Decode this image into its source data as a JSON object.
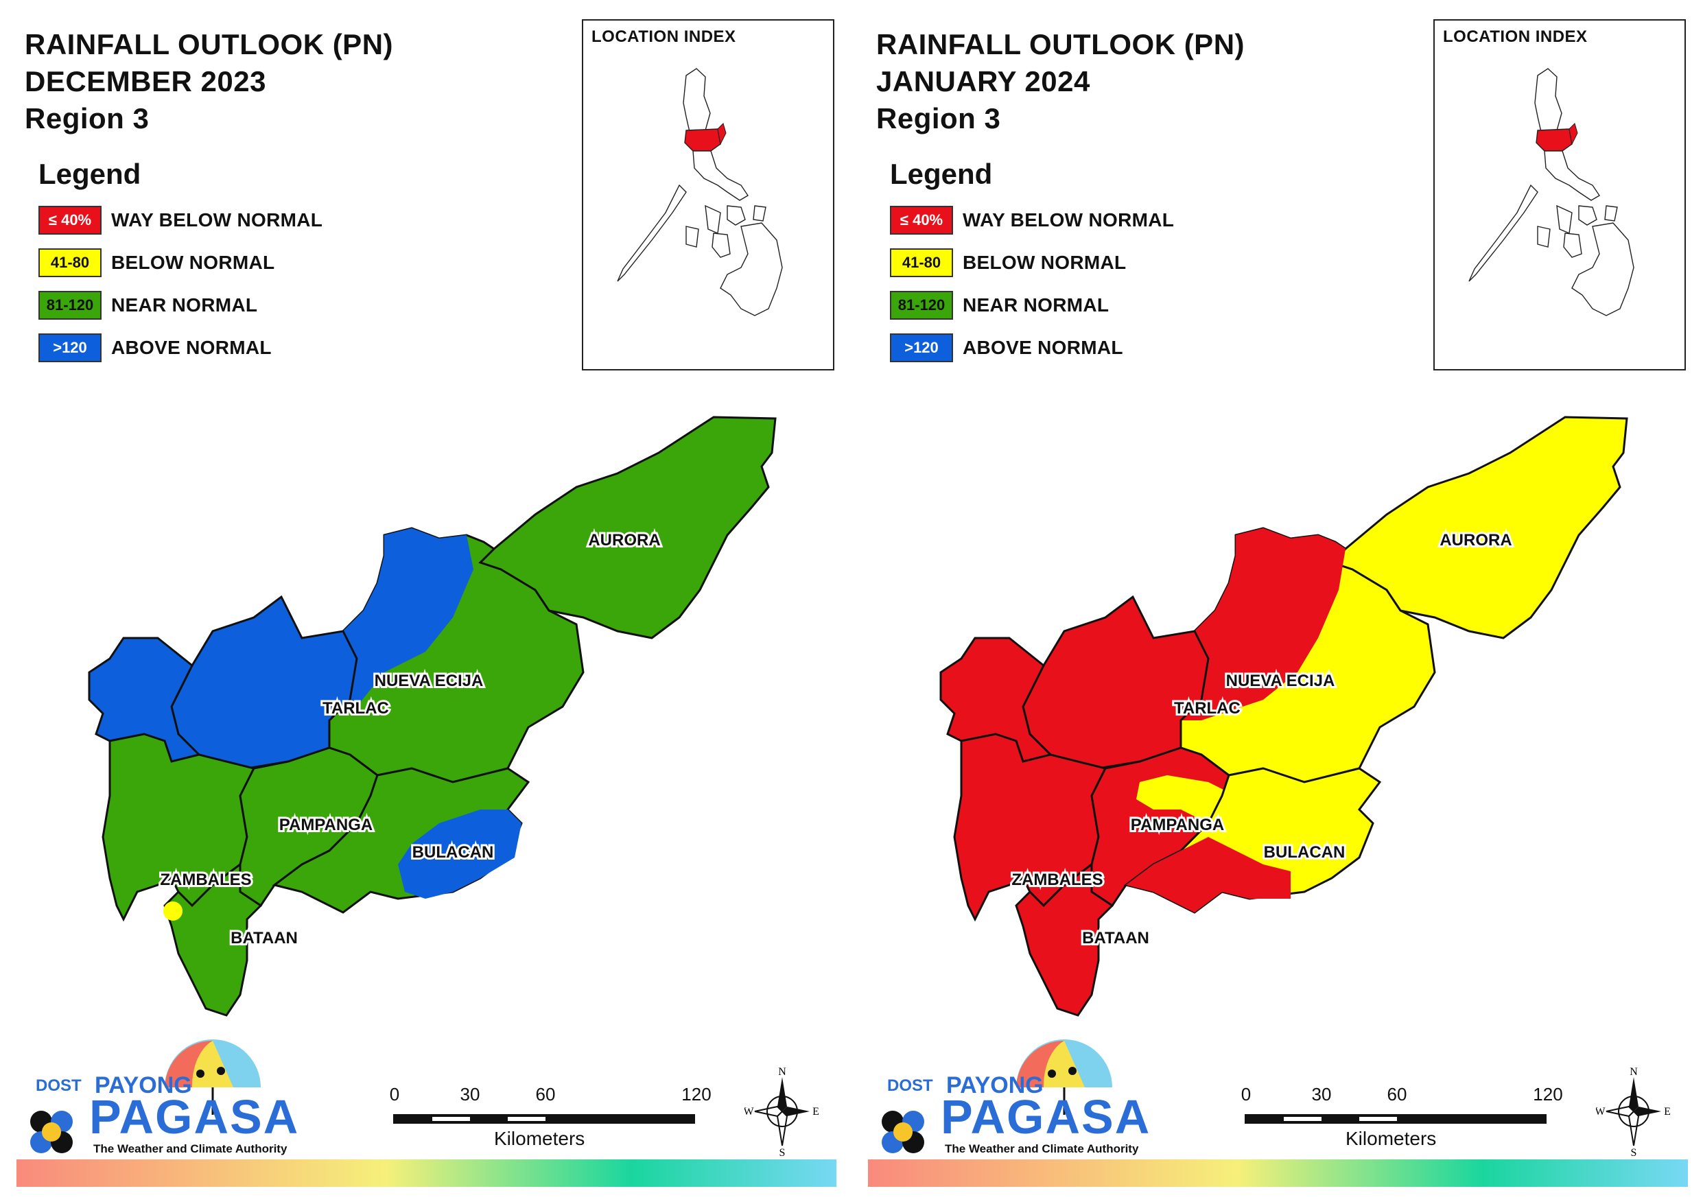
{
  "panels": [
    {
      "title_line1": "RAINFALL OUTLOOK (PN)",
      "title_line2": "DECEMBER 2023",
      "title_line3": "Region 3",
      "provinces": {
        "zambales": {
          "label": "ZAMBALES",
          "category": "near_normal"
        },
        "tarlac": {
          "label": "TARLAC",
          "category": "above_normal"
        },
        "nueva_ecija": {
          "label": "NUEVA ECIJA",
          "category": "mixed_above_near"
        },
        "aurora": {
          "label": "AURORA",
          "category": "near_normal"
        },
        "pampanga": {
          "label": "PAMPANGA",
          "category": "near_normal"
        },
        "bulacan": {
          "label": "BULACAN",
          "category": "mixed_near_above"
        },
        "bataan": {
          "label": "BATAAN",
          "category": "near_normal_with_below_patch"
        }
      }
    },
    {
      "title_line1": "RAINFALL OUTLOOK (PN)",
      "title_line2": "JANUARY 2024",
      "title_line3": "Region 3",
      "provinces": {
        "zambales": {
          "label": "ZAMBALES",
          "category": "way_below_normal"
        },
        "tarlac": {
          "label": "TARLAC",
          "category": "way_below_normal"
        },
        "nueva_ecija": {
          "label": "NUEVA ECIJA",
          "category": "mixed_way_below_below"
        },
        "aurora": {
          "label": "AURORA",
          "category": "below_normal"
        },
        "pampanga": {
          "label": "PAMPANGA",
          "category": "mixed_way_below_below"
        },
        "bulacan": {
          "label": "BULACAN",
          "category": "mixed_below_way_below"
        },
        "bataan": {
          "label": "BATAAN",
          "category": "way_below_normal"
        }
      }
    }
  ],
  "legend": {
    "title": "Legend",
    "items": [
      {
        "range": "≤ 40%",
        "label": "WAY BELOW NORMAL",
        "color": "#e8101a",
        "text_color": "#ffffff"
      },
      {
        "range": "41-80",
        "label": "BELOW NORMAL",
        "color": "#ffff00",
        "text_color": "#111111"
      },
      {
        "range": "81-120",
        "label": "NEAR NORMAL",
        "color": "#3aa60a",
        "text_color": "#111111"
      },
      {
        "range": ">120",
        "label": "ABOVE NORMAL",
        "color": "#0d5fdc",
        "text_color": "#ffffff"
      }
    ]
  },
  "location_index": {
    "title": "LOCATION INDEX",
    "highlight_color": "#e8101a"
  },
  "scale": {
    "ticks": [
      "0",
      "30",
      "60",
      "120"
    ],
    "unit": "Kilometers"
  },
  "compass": {
    "n": "N",
    "s": "S",
    "e": "E",
    "w": "W"
  },
  "logo": {
    "dost": "DOST",
    "payong": "PAYONG",
    "pagasa": "PAGASA",
    "tagline": "The Weather and Climate Authority"
  },
  "colors": {
    "way_below_normal": "#e8101a",
    "below_normal": "#ffff00",
    "near_normal": "#3aa60a",
    "above_normal": "#0d5fdc"
  }
}
